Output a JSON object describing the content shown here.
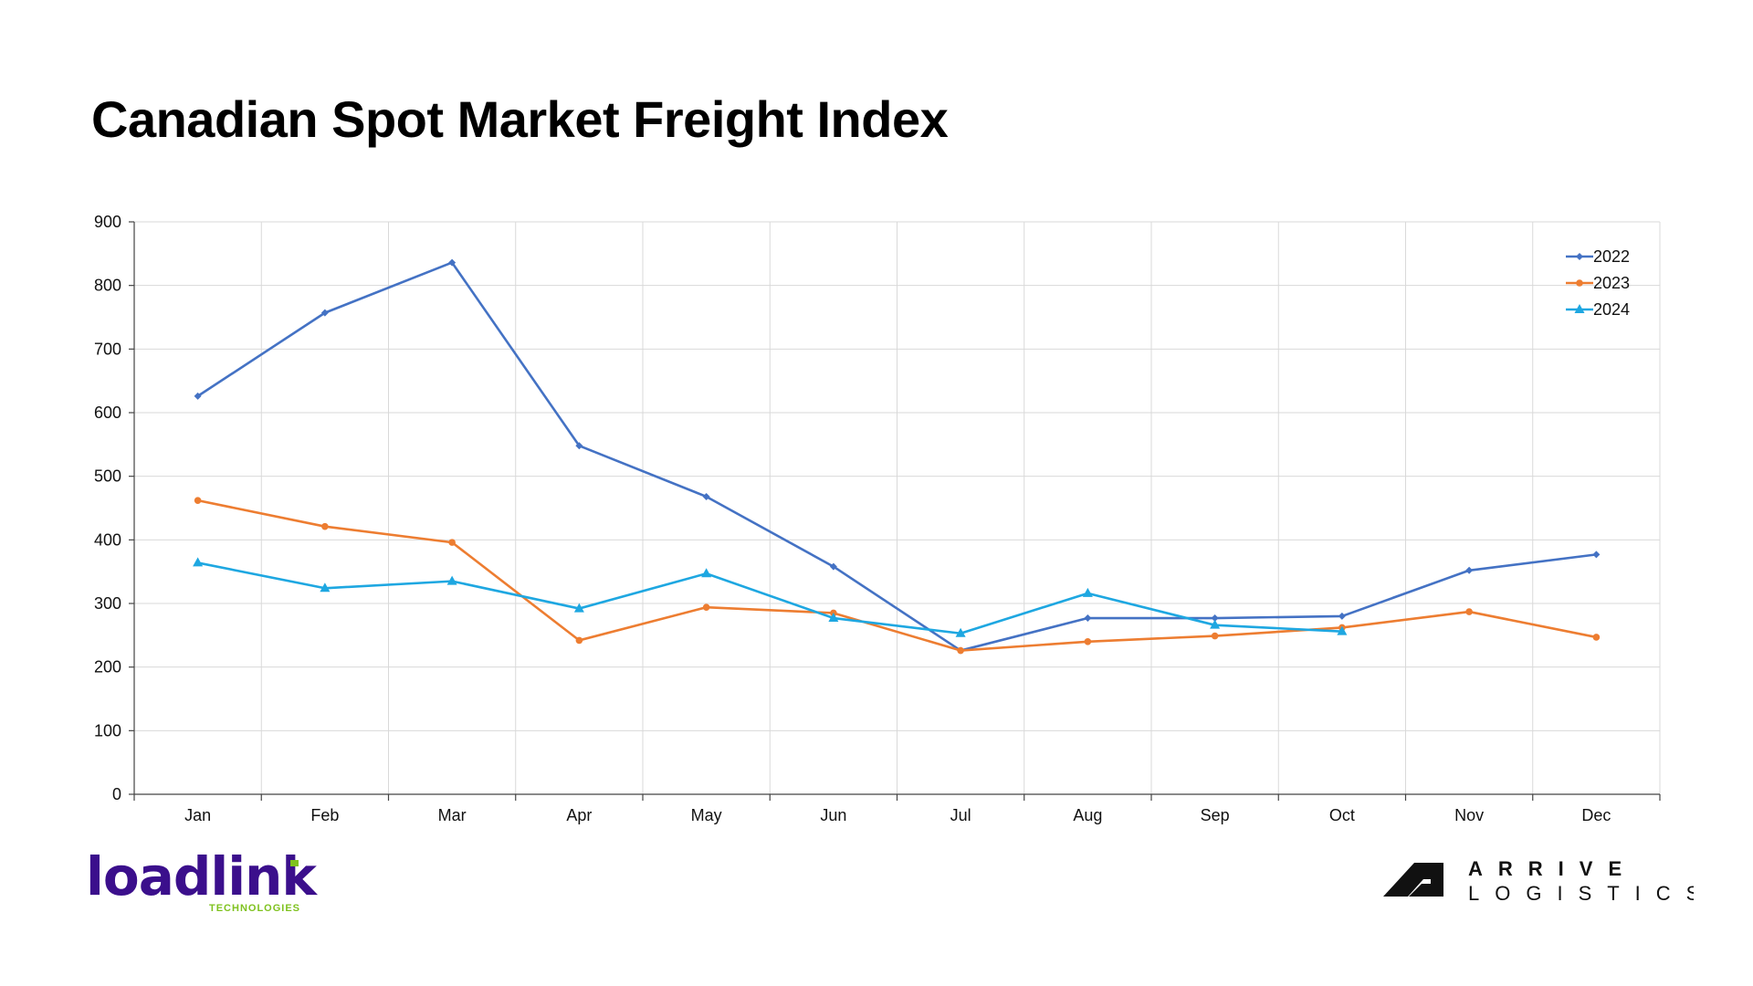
{
  "page": {
    "title": "Canadian Spot Market Freight Index"
  },
  "chart_data": {
    "type": "line",
    "title": "Canadian Spot Market Freight Index",
    "xlabel": "",
    "ylabel": "",
    "categories": [
      "Jan",
      "Feb",
      "Mar",
      "Apr",
      "May",
      "Jun",
      "Jul",
      "Aug",
      "Sep",
      "Oct",
      "Nov",
      "Dec"
    ],
    "ylim": [
      0,
      900
    ],
    "yticks": [
      0,
      100,
      200,
      300,
      400,
      500,
      600,
      700,
      800,
      900
    ],
    "grid": true,
    "legend_position": "top-right",
    "series": [
      {
        "name": "2022",
        "color": "#4472c4",
        "marker": "diamond",
        "values": [
          626,
          757,
          836,
          548,
          468,
          358,
          226,
          277,
          277,
          280,
          352,
          377
        ]
      },
      {
        "name": "2023",
        "color": "#ed7d31",
        "marker": "circle",
        "values": [
          462,
          421,
          396,
          242,
          294,
          285,
          226,
          240,
          249,
          262,
          287,
          247
        ]
      },
      {
        "name": "2024",
        "color": "#1ea7e1",
        "marker": "triangle",
        "values": [
          364,
          324,
          335,
          292,
          347,
          277,
          253,
          316,
          266,
          256,
          null,
          null
        ]
      }
    ]
  },
  "logos": {
    "loadlink": {
      "name": "loadlink",
      "tagline": "TECHNOLOGIES"
    },
    "arrive": {
      "line1": "ARRIVE",
      "line2": "LOGISTICS"
    }
  }
}
